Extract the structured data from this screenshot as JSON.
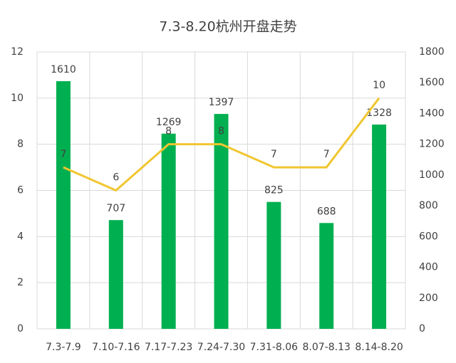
{
  "chart_data": {
    "type": "combo",
    "title": "7.3-8.20杭州开盘走势",
    "categories": [
      "7.3-7.9",
      "7.10-7.16",
      "7.17-7.23",
      "7.24-7.30",
      "7.31-8.06",
      "8.07-8.13",
      "8.14-8.20"
    ],
    "series": [
      {
        "type": "bar",
        "axis": "y2",
        "color": "#00b050",
        "values": [
          1610,
          707,
          1269,
          1397,
          825,
          688,
          1328
        ]
      },
      {
        "type": "line",
        "axis": "y",
        "color": "#f0c630",
        "values": [
          7,
          6,
          8,
          8,
          7,
          7,
          10
        ]
      }
    ],
    "ylim": [
      0,
      12
    ],
    "yticks": [
      0,
      2,
      4,
      6,
      8,
      10,
      12
    ],
    "y2lim": [
      0,
      1800
    ],
    "y2ticks": [
      0,
      200,
      400,
      600,
      800,
      1000,
      1200,
      1400,
      1600,
      1800
    ],
    "grid": true
  }
}
